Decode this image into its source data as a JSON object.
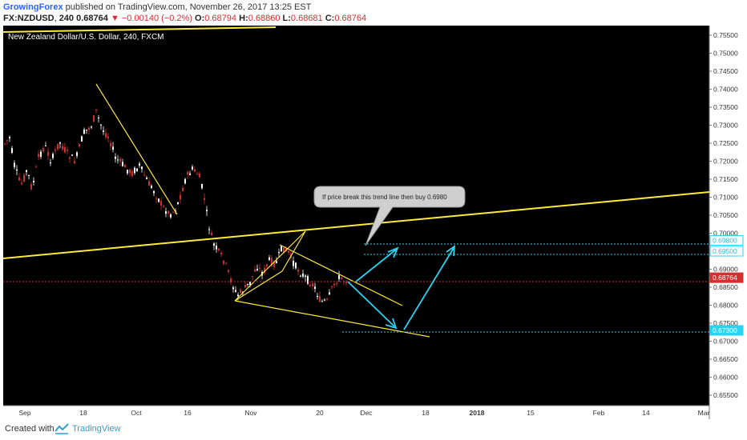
{
  "header": {
    "author": "GrowingForex",
    "published_text": "published on TradingView.com, November 26, 2017 13:25 EST",
    "symbol": "FX:NZDUSD",
    "interval": "240",
    "last": "0.68764",
    "change": "▼ −0.00140 (−0.2%)",
    "o_label": "O:",
    "o_value": "0.68794",
    "h_label": "H:",
    "h_value": "0.68860",
    "l_label": "L:",
    "l_value": "0.68681",
    "c_label": "C:",
    "c_value": "0.68764"
  },
  "chart": {
    "title": "New Zealand Dollar/U.S. Dollar, 240, FXCM",
    "annotation": "If price break this trend line then buy 0.6980",
    "price_axis": [
      "0.75500",
      "0.75000",
      "0.74500",
      "0.74000",
      "0.73500",
      "0.73000",
      "0.72500",
      "0.72000",
      "0.71500",
      "0.71000",
      "0.70500",
      "0.70000",
      "0.69500",
      "0.69000",
      "0.68500",
      "0.68000",
      "0.67500",
      "0.67000",
      "0.66500",
      "0.66000",
      "0.65500"
    ],
    "time_axis": [
      "Sep",
      "18",
      "Oct",
      "16",
      "Nov",
      "20",
      "Dec",
      "18",
      "2018",
      "15",
      "Feb",
      "14",
      "Mar"
    ],
    "price_tags": [
      "0.69800",
      "0.69500",
      "0.68764",
      "0.67300"
    ],
    "colors": {
      "background": "#000000",
      "candle_up": "#ffffff",
      "candle_down": "#d32f2f",
      "trendline": "#ffeb3b",
      "arrow": "#29d3f2",
      "last_price": "#d32f2f",
      "level_line": "#29d3f2"
    }
  },
  "footer": {
    "created_with": "Created with",
    "brand": "TradingView"
  }
}
